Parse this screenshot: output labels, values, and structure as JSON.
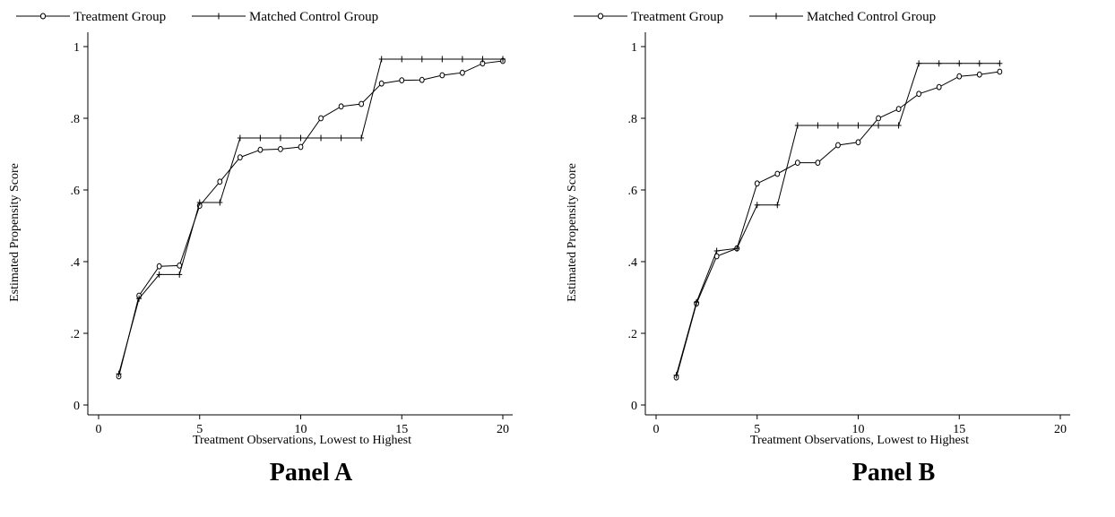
{
  "legend": {
    "treatment": "Treatment Group",
    "control": "Matched Control Group"
  },
  "chart_data": [
    {
      "type": "line",
      "caption": "Panel A",
      "xlabel": "Treatment Observations, Lowest to Highest",
      "ylabel": "Estimated Propensity Score",
      "xlim": [
        0,
        20
      ],
      "ylim": [
        0,
        1
      ],
      "xticks": [
        0,
        5,
        10,
        15,
        20
      ],
      "yticks": [
        0,
        0.2,
        0.4,
        0.6,
        0.8,
        1
      ],
      "ytick_labels": [
        "0",
        ".2",
        ".4",
        ".6",
        ".8",
        "1"
      ],
      "grid": false,
      "legend_position": "top",
      "x": [
        1,
        2,
        3,
        4,
        5,
        6,
        7,
        8,
        9,
        10,
        11,
        12,
        13,
        14,
        15,
        16,
        17,
        18,
        19,
        20
      ],
      "series": [
        {
          "name": "Treatment Group",
          "marker": "circle",
          "values": [
            0.08,
            0.305,
            0.387,
            0.389,
            0.556,
            0.623,
            0.691,
            0.712,
            0.714,
            0.72,
            0.8,
            0.833,
            0.84,
            0.897,
            0.906,
            0.907,
            0.92,
            0.927,
            0.953,
            0.96
          ]
        },
        {
          "name": "Matched Control Group",
          "marker": "plus",
          "step": true,
          "values": [
            0.087,
            0.297,
            0.364,
            0.364,
            0.565,
            0.565,
            0.745,
            0.745,
            0.745,
            0.745,
            0.745,
            0.745,
            0.745,
            0.965,
            0.965,
            0.965,
            0.965,
            0.965,
            0.965,
            0.965
          ]
        }
      ]
    },
    {
      "type": "line",
      "caption": "Panel B",
      "xlabel": "Treatment Observations, Lowest to Highest",
      "ylabel": "Estimated Propensity Score",
      "xlim": [
        0,
        20
      ],
      "ylim": [
        0,
        1
      ],
      "xticks": [
        0,
        5,
        10,
        15,
        20
      ],
      "yticks": [
        0,
        0.2,
        0.4,
        0.6,
        0.8,
        1
      ],
      "ytick_labels": [
        "0",
        ".2",
        ".4",
        ".6",
        ".8",
        "1"
      ],
      "grid": false,
      "legend_position": "top",
      "x": [
        1,
        2,
        3,
        4,
        5,
        6,
        7,
        8,
        9,
        10,
        11,
        12,
        13,
        14,
        15,
        16,
        17
      ],
      "series": [
        {
          "name": "Treatment Group",
          "marker": "circle",
          "values": [
            0.077,
            0.283,
            0.415,
            0.437,
            0.618,
            0.645,
            0.676,
            0.676,
            0.725,
            0.733,
            0.8,
            0.826,
            0.868,
            0.887,
            0.917,
            0.922,
            0.93
          ]
        },
        {
          "name": "Matched Control Group",
          "marker": "plus",
          "step": true,
          "values": [
            0.083,
            0.287,
            0.43,
            0.437,
            0.558,
            0.558,
            0.78,
            0.78,
            0.78,
            0.78,
            0.78,
            0.78,
            0.953,
            0.953,
            0.953,
            0.953,
            0.953
          ]
        }
      ]
    }
  ]
}
